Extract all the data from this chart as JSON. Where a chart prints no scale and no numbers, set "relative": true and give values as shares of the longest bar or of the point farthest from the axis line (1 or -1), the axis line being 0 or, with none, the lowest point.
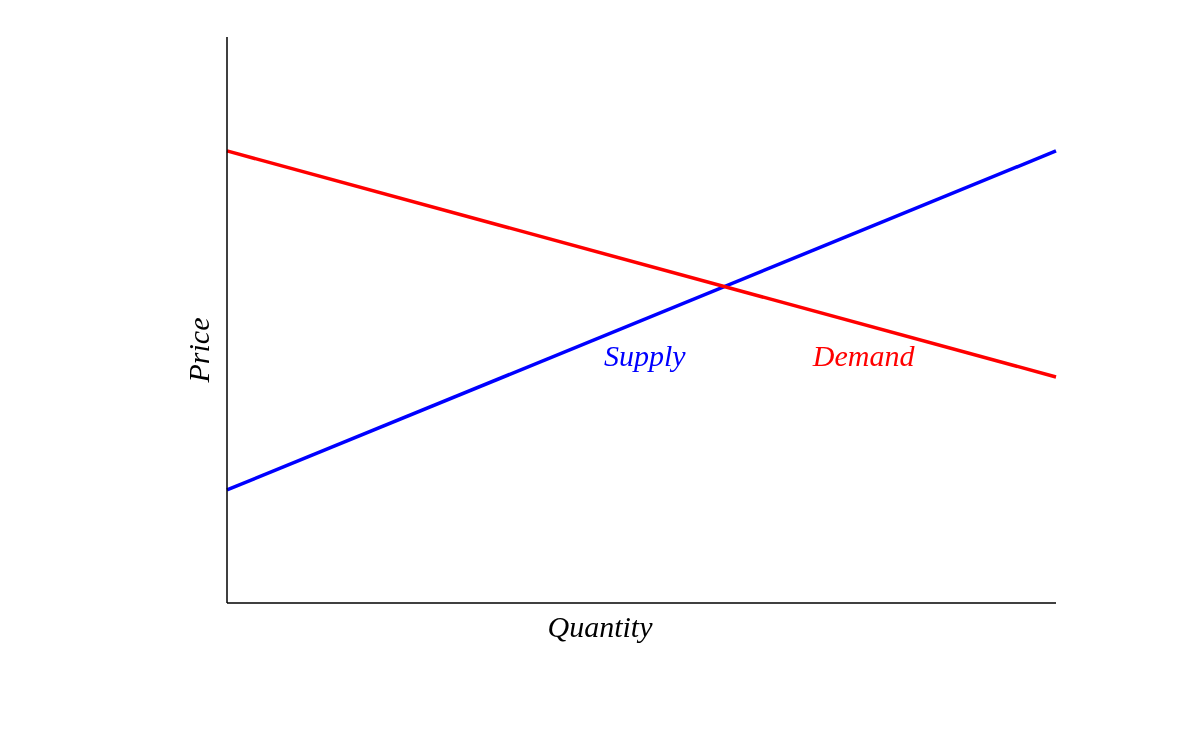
{
  "chart_data": {
    "type": "line",
    "relative": true,
    "xlabel": "Quantity",
    "ylabel": "Price",
    "categories": [
      null,
      null
    ],
    "series": [
      {
        "name": "Supply",
        "color": "#0000ff",
        "values": [
          0.25,
          1
        ]
      },
      {
        "name": "Demand",
        "color": "#ff0000",
        "values": [
          1,
          0.5
        ]
      }
    ],
    "grid": false,
    "marker": "none",
    "line_style": "solid"
  }
}
